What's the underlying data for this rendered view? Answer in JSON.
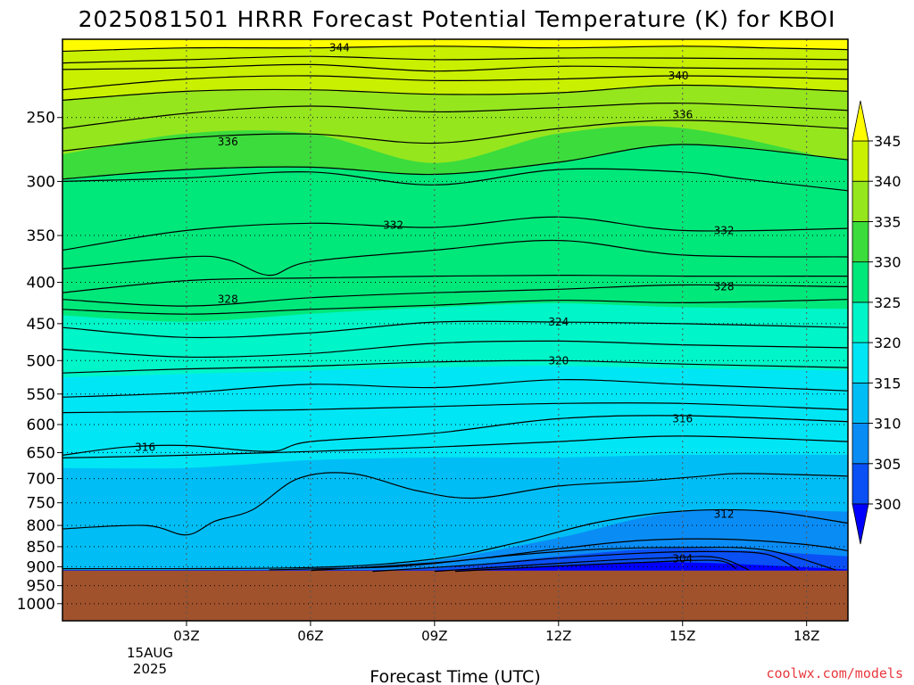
{
  "title": "2025081501 HRRR Forecast Potential Temperature (K) for KBOI",
  "xlabel": "Forecast Time (UTC)",
  "credit": "coolwx.com/models",
  "date_label_1": "15AUG",
  "date_label_2": "2025",
  "colors": {
    "ground": "#a0522d",
    "contour": "#000000",
    "grid": "#000000"
  },
  "chart_data": {
    "type": "contour",
    "title": "2025081501 HRRR Forecast Potential Temperature (K) for KBOI",
    "xlabel": "Forecast Time (UTC)",
    "ylabel": "",
    "x_ticks": [
      "03Z",
      "06Z",
      "09Z",
      "12Z",
      "15Z",
      "18Z"
    ],
    "x_tick_hours": [
      3,
      6,
      9,
      12,
      15,
      18
    ],
    "xlim_hours": [
      0,
      19
    ],
    "y_ticks": [
      250,
      300,
      350,
      400,
      450,
      500,
      550,
      600,
      650,
      700,
      750,
      800,
      850,
      900,
      950,
      1000
    ],
    "ylim_hpa": [
      200,
      1050
    ],
    "y_scale": "log-pressure",
    "surface_pressure_hpa": 910,
    "grid": true,
    "colorbar": {
      "levels": [
        300,
        305,
        310,
        315,
        320,
        325,
        330,
        335,
        340,
        345
      ],
      "colors": [
        "#0000ff",
        "#0a50f5",
        "#0a8cf5",
        "#00bef5",
        "#00e6f5",
        "#00f5c8",
        "#00e87a",
        "#3cdc3c",
        "#96e61e",
        "#c8f000",
        "#fffb00"
      ],
      "extend": "both"
    },
    "contour_labels": [
      {
        "value": "344",
        "hour": 6.7,
        "pressure": 205
      },
      {
        "value": "340",
        "hour": 14.9,
        "pressure": 222
      },
      {
        "value": "336",
        "hour": 15.0,
        "pressure": 248
      },
      {
        "value": "336",
        "hour": 4.0,
        "pressure": 268
      },
      {
        "value": "332",
        "hour": 8.0,
        "pressure": 340
      },
      {
        "value": "332",
        "hour": 16.0,
        "pressure": 345
      },
      {
        "value": "328",
        "hour": 4.0,
        "pressure": 420
      },
      {
        "value": "328",
        "hour": 16.0,
        "pressure": 405
      },
      {
        "value": "324",
        "hour": 12.0,
        "pressure": 448
      },
      {
        "value": "320",
        "hour": 12.0,
        "pressure": 500
      },
      {
        "value": "316",
        "hour": 15.0,
        "pressure": 590
      },
      {
        "value": "316",
        "hour": 2.0,
        "pressure": 640
      },
      {
        "value": "312",
        "hour": 16.0,
        "pressure": 775
      },
      {
        "value": "304",
        "hour": 15.0,
        "pressure": 880
      }
    ],
    "contours": [
      {
        "level": 344,
        "hours": [
          0,
          3,
          6,
          9,
          12,
          15,
          17,
          19
        ],
        "pressure": [
          207,
          205,
          205,
          204,
          205,
          204,
          205,
          206
        ]
      },
      {
        "level": 342,
        "hours": [
          0,
          3,
          6,
          9,
          12,
          15,
          19
        ],
        "pressure": [
          214,
          212,
          210,
          212,
          211,
          211,
          212
        ]
      },
      {
        "level": 341,
        "hours": [
          0,
          3,
          6,
          9,
          12,
          15,
          19
        ],
        "pressure": [
          218,
          217,
          215,
          219,
          216,
          217,
          218
        ]
      },
      {
        "level": 340,
        "hours": [
          0,
          3,
          6,
          9,
          12,
          15,
          19
        ],
        "pressure": [
          231,
          224,
          222,
          225,
          224,
          222,
          224
        ]
      },
      {
        "level": 339,
        "hours": [
          0,
          3,
          6,
          9,
          12,
          15,
          19
        ],
        "pressure": [
          238,
          232,
          231,
          234,
          233,
          228,
          232
        ]
      },
      {
        "level": 338,
        "hours": [
          0,
          3,
          6,
          9,
          12,
          15,
          19
        ],
        "pressure": [
          258,
          247,
          242,
          246,
          243,
          240,
          245
        ]
      },
      {
        "level": 336,
        "hours": [
          0,
          3,
          6,
          9,
          12,
          15,
          19
        ],
        "pressure": [
          275,
          265,
          262,
          269,
          258,
          252,
          258
        ]
      },
      {
        "level": 334,
        "hours": [
          0,
          3,
          6,
          9,
          12,
          15,
          19
        ],
        "pressure": [
          298,
          290,
          288,
          294,
          284,
          270,
          282
        ]
      },
      {
        "level": 333,
        "hours": [
          0,
          3,
          6,
          9,
          12,
          15,
          16.5,
          19
        ],
        "pressure": [
          300,
          297,
          292,
          303,
          290,
          292,
          298,
          308
        ]
      },
      {
        "level": 332,
        "hours": [
          0,
          3,
          6,
          9,
          12,
          15,
          19
        ],
        "pressure": [
          365,
          345,
          338,
          342,
          332,
          345,
          343
        ]
      },
      {
        "level": 330,
        "hours": [
          0,
          3,
          4,
          5,
          6,
          9,
          12,
          15,
          19
        ],
        "pressure": [
          385,
          372,
          375,
          392,
          377,
          365,
          355,
          370,
          372
        ]
      },
      {
        "level": 329,
        "hours": [
          0,
          3,
          6,
          9,
          12,
          15,
          19
        ],
        "pressure": [
          412,
          398,
          395,
          393,
          392,
          393,
          393
        ]
      },
      {
        "level": 328,
        "hours": [
          0,
          3,
          6,
          9,
          12,
          15,
          19
        ],
        "pressure": [
          420,
          428,
          418,
          412,
          408,
          403,
          405
        ]
      },
      {
        "level": 326,
        "hours": [
          0,
          3,
          6,
          9,
          12,
          15,
          19
        ],
        "pressure": [
          432,
          438,
          432,
          427,
          421,
          424,
          420
        ]
      },
      {
        "level": 324,
        "hours": [
          0,
          3,
          6,
          9,
          12,
          15,
          19
        ],
        "pressure": [
          455,
          468,
          462,
          448,
          448,
          450,
          455
        ]
      },
      {
        "level": 322,
        "hours": [
          0,
          3,
          6,
          9,
          12,
          15,
          19
        ],
        "pressure": [
          484,
          495,
          490,
          476,
          473,
          478,
          482
        ]
      },
      {
        "level": 320,
        "hours": [
          0,
          3,
          6,
          9,
          12,
          15,
          19
        ],
        "pressure": [
          518,
          512,
          508,
          502,
          500,
          505,
          510
        ]
      },
      {
        "level": 318,
        "hours": [
          0,
          3,
          6,
          9,
          12,
          15,
          19
        ],
        "pressure": [
          555,
          548,
          535,
          540,
          528,
          535,
          545
        ]
      },
      {
        "level": 317,
        "hours": [
          0,
          3,
          6,
          9,
          12,
          15,
          19
        ],
        "pressure": [
          580,
          578,
          575,
          570,
          565,
          565,
          575
        ]
      },
      {
        "level": 316,
        "hours": [
          0,
          1.5,
          3,
          5,
          6,
          9,
          12,
          15,
          19
        ],
        "pressure": [
          655,
          640,
          637,
          648,
          630,
          615,
          590,
          585,
          595
        ]
      },
      {
        "level": 315,
        "hours": [
          0,
          3,
          6,
          9,
          12,
          15,
          19
        ],
        "pressure": [
          660,
          655,
          648,
          640,
          630,
          620,
          630
        ]
      },
      {
        "level": 312,
        "hours": [
          0,
          2,
          3,
          3.7,
          4.6,
          5.7,
          7,
          8.6,
          10,
          12,
          14,
          15.5,
          16.5,
          19
        ],
        "pressure": [
          808,
          800,
          822,
          790,
          765,
          700,
          690,
          725,
          740,
          715,
          705,
          695,
          690,
          695
        ]
      },
      {
        "level": 310,
        "hours": [
          0,
          6,
          9,
          11,
          13,
          15,
          17,
          19
        ],
        "pressure": [
          905,
          902,
          880,
          840,
          792,
          768,
          768,
          795
        ]
      },
      {
        "level": 308,
        "hours": [
          5,
          8,
          10,
          12,
          14,
          16,
          18,
          19
        ],
        "pressure": [
          908,
          900,
          880,
          855,
          835,
          832,
          845,
          860
        ]
      },
      {
        "level": 307,
        "hours": [
          6,
          9,
          11,
          13,
          15,
          17,
          18.7
        ],
        "pressure": [
          910,
          890,
          870,
          856,
          852,
          858,
          908
        ]
      },
      {
        "level": 306,
        "hours": [
          7.5,
          10,
          12,
          14,
          15.5,
          17,
          17.8
        ],
        "pressure": [
          912,
          895,
          878,
          866,
          862,
          868,
          908
        ]
      },
      {
        "level": 305,
        "hours": [
          9,
          11,
          13,
          14.5,
          15.8,
          16.6
        ],
        "pressure": [
          912,
          898,
          885,
          878,
          876,
          908
        ]
      },
      {
        "level": 304,
        "hours": [
          9.5,
          12,
          14,
          15.8,
          16.3
        ],
        "pressure": [
          912,
          898,
          889,
          884,
          905
        ]
      }
    ],
    "color_bands": [
      {
        "color": "#fffb00",
        "top": [
          200,
          200,
          200,
          200,
          200,
          200,
          200
        ],
        "bottom": [
          207,
          205,
          205,
          204,
          205,
          204,
          206
        ]
      },
      {
        "color": "#c8f000",
        "top": [
          207,
          205,
          205,
          204,
          205,
          204,
          206
        ],
        "bottom": [
          238,
          232,
          231,
          234,
          233,
          228,
          232
        ]
      },
      {
        "color": "#96e61e",
        "top": [
          238,
          232,
          231,
          234,
          233,
          228,
          232
        ],
        "bottom": [
          278,
          262,
          262,
          285,
          262,
          258,
          285
        ]
      },
      {
        "color": "#3cdc3c",
        "top": [
          278,
          262,
          262,
          285,
          262,
          258,
          285
        ],
        "bottom": [
          298,
          290,
          288,
          294,
          284,
          270,
          282
        ]
      },
      {
        "color": "#00e87a",
        "top": [
          298,
          290,
          288,
          294,
          284,
          270,
          282
        ],
        "bottom": [
          440,
          448,
          438,
          430,
          425,
          430,
          432
        ]
      },
      {
        "color": "#00f5c8",
        "top": [
          440,
          448,
          438,
          430,
          425,
          430,
          432
        ],
        "bottom": [
          525,
          520,
          515,
          510,
          508,
          512,
          515
        ]
      },
      {
        "color": "#00e6f5",
        "top": [
          525,
          520,
          515,
          510,
          508,
          512,
          515
        ],
        "bottom": [
          680,
          680,
          665,
          660,
          660,
          655,
          655
        ]
      },
      {
        "color": "#00bef5",
        "top": [
          680,
          680,
          665,
          660,
          660,
          655,
          655
        ],
        "bottom": [
          910,
          910,
          905,
          885,
          830,
          770,
          770
        ]
      },
      {
        "color": "#0a8cf5",
        "top": [
          910,
          910,
          905,
          885,
          830,
          770,
          770
        ],
        "bottom": [
          910,
          910,
          910,
          905,
          875,
          855,
          875
        ]
      },
      {
        "color": "#0a50f5",
        "top": [
          910,
          910,
          910,
          905,
          875,
          855,
          875
        ],
        "bottom": [
          910,
          910,
          910,
          910,
          900,
          890,
          908
        ]
      },
      {
        "color": "#0000ff",
        "top": [
          910,
          910,
          910,
          910,
          900,
          890,
          908
        ],
        "bottom": [
          910,
          910,
          910,
          910,
          910,
          910,
          910
        ]
      }
    ],
    "band_hours": [
      0,
      3,
      6,
      9,
      12,
      15,
      19
    ]
  }
}
